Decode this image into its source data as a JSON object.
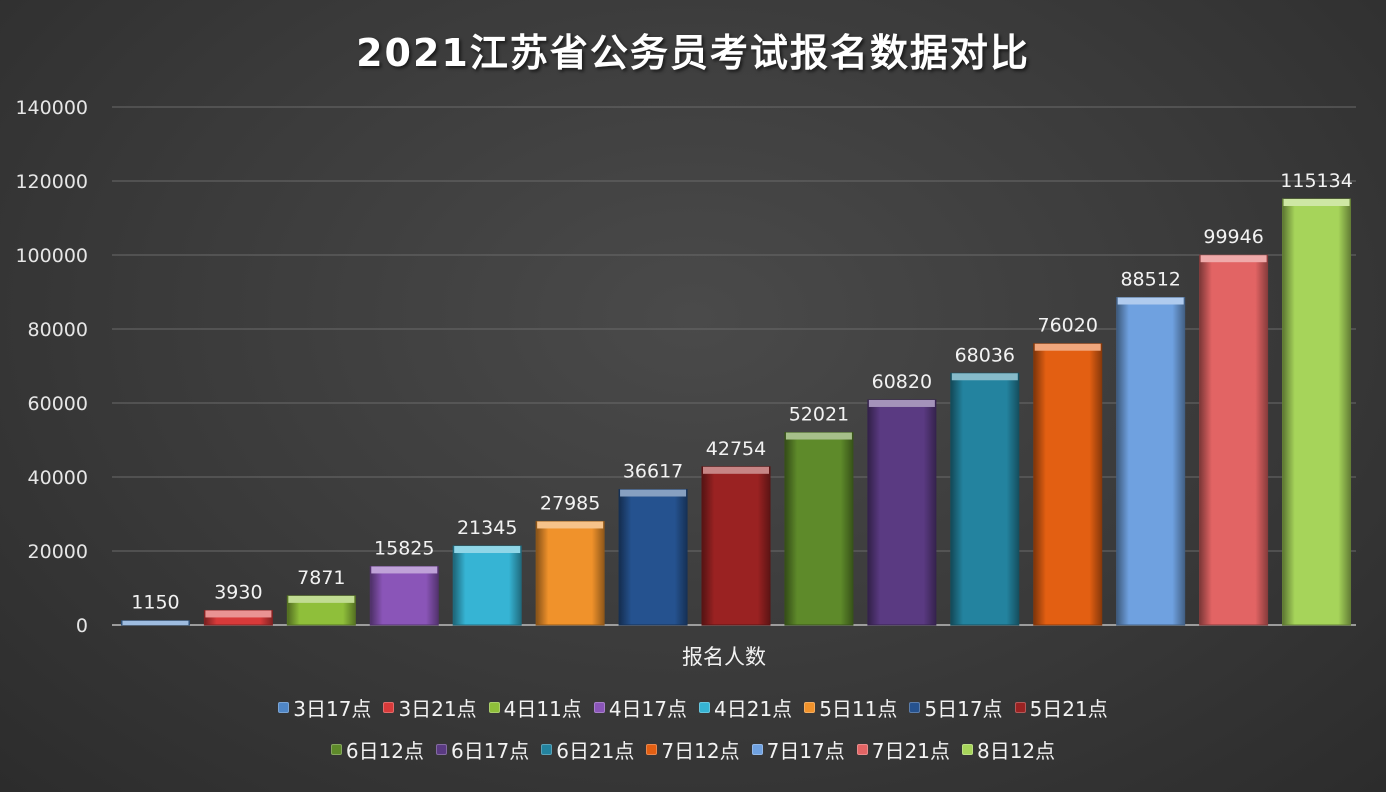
{
  "chart_data": {
    "type": "bar",
    "title": "2021江苏省公务员考试报名数据对比",
    "xlabel": "报名人数",
    "ylabel": "",
    "ylim": [
      0,
      140000
    ],
    "yticks": [
      0,
      20000,
      40000,
      60000,
      80000,
      100000,
      120000,
      140000
    ],
    "grid": true,
    "legend_position": "bottom",
    "series": [
      {
        "name": "3日17点",
        "value": 1150,
        "color": "#4f86c6"
      },
      {
        "name": "3日21点",
        "value": 3930,
        "color": "#d83a3a"
      },
      {
        "name": "4日11点",
        "value": 7871,
        "color": "#8fbf3a"
      },
      {
        "name": "4日17点",
        "value": 15825,
        "color": "#8a55b8"
      },
      {
        "name": "4日21点",
        "value": 21345,
        "color": "#36b4d4"
      },
      {
        "name": "5日11点",
        "value": 27985,
        "color": "#f0922b"
      },
      {
        "name": "5日17点",
        "value": 36617,
        "color": "#25528f"
      },
      {
        "name": "5日21点",
        "value": 42754,
        "color": "#9a2222"
      },
      {
        "name": "6日12点",
        "value": 52021,
        "color": "#5e8a2a"
      },
      {
        "name": "6日17点",
        "value": 60820,
        "color": "#5a3a82"
      },
      {
        "name": "6日21点",
        "value": 68036,
        "color": "#23839f"
      },
      {
        "name": "7日12点",
        "value": 76020,
        "color": "#e35f12"
      },
      {
        "name": "7日17点",
        "value": 88512,
        "color": "#6fa1e0"
      },
      {
        "name": "7日21点",
        "value": 99946,
        "color": "#e26464"
      },
      {
        "name": "8日12点",
        "value": 115134,
        "color": "#a6d45a"
      }
    ]
  }
}
